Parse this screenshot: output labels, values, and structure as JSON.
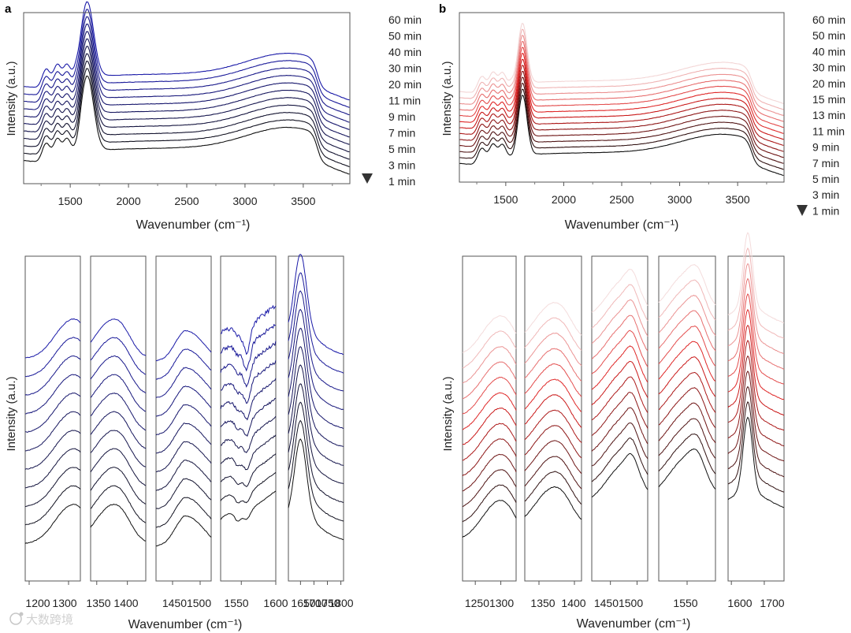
{
  "figure": {
    "panel_a_label": "a",
    "panel_b_label": "b",
    "watermark": "大数跨境"
  },
  "colors": {
    "blue_end": "#1a1aa8",
    "red_end": "#dd1a1a",
    "dark": "#111111",
    "frame": "#555555"
  },
  "chart_data": [
    {
      "id": "a_top",
      "type": "line",
      "title": "",
      "xlabel": "Wavenumber (cm⁻¹)",
      "ylabel": "Intensity (a.u.)",
      "xlim": [
        1100,
        3900
      ],
      "xticks": [
        1500,
        2000,
        2500,
        3000,
        3500
      ],
      "yticks_shown": false,
      "color_scheme": "blue",
      "legend_position": "right",
      "legend": [
        "60 min",
        "50 min",
        "40 min",
        "30 min",
        "20 min",
        "11 min",
        "9 min",
        "7 min",
        "5 min",
        "3 min",
        "1 min"
      ],
      "series_time_min": [
        1,
        3,
        5,
        7,
        9,
        11,
        20,
        30,
        40,
        50,
        60
      ],
      "peaks_cm1": [
        1300,
        1390,
        1470,
        1550,
        1640,
        3450,
        3630
      ]
    },
    {
      "id": "b_top",
      "type": "line",
      "title": "",
      "xlabel": "Wavenumber (cm⁻¹)",
      "ylabel": "Intensity (a.u.)",
      "xlim": [
        1100,
        3900
      ],
      "xticks": [
        1500,
        2000,
        2500,
        3000,
        3500
      ],
      "yticks_shown": false,
      "color_scheme": "red",
      "legend_position": "right",
      "legend": [
        "60 min",
        "50 min",
        "40 min",
        "30 min",
        "20 min",
        "15 min",
        "13 min",
        "11 min",
        "9 min",
        "7 min",
        "5 min",
        "3 min",
        "1 min"
      ],
      "series_time_min": [
        1,
        3,
        5,
        7,
        9,
        11,
        13,
        15,
        20,
        30,
        40,
        50,
        60
      ],
      "peaks_cm1": [
        1300,
        1390,
        1470,
        1550,
        1640,
        3420,
        3630
      ]
    },
    {
      "id": "a_bottom",
      "type": "line",
      "title": "",
      "xlabel": "Wavenumber (cm⁻¹)",
      "ylabel": "Intensity (a.u.)",
      "color_scheme": "blue",
      "series_count": 11,
      "subpanels": [
        {
          "xlim": [
            1190,
            1330
          ],
          "xticks": [
            1200,
            1300
          ],
          "peak_cm1": 1300
        },
        {
          "xlim": [
            1340,
            1430
          ],
          "xticks": [
            1350,
            1400
          ],
          "peak_cm1": 1370
        },
        {
          "xlim": [
            1420,
            1520
          ],
          "xticks": [
            1450,
            1500
          ],
          "peak_cm1": 1480
        },
        {
          "xlim": [
            1520,
            1600
          ],
          "xticks": [
            1550,
            1600
          ],
          "peak_cm1": 1555
        },
        {
          "xlim": [
            1605,
            1810
          ],
          "xticks": [
            1650,
            1700,
            1750,
            1800
          ],
          "peak_cm1": 1650
        }
      ],
      "tick_labels": [
        "1200",
        "1300",
        "1350",
        "1400",
        "14501500",
        "1550",
        "1600",
        "1650",
        "1700",
        "1750",
        "1800"
      ]
    },
    {
      "id": "b_bottom",
      "type": "line",
      "title": "",
      "xlabel": "Wavenumber (cm⁻¹)",
      "ylabel": "Intensity (a.u.)",
      "color_scheme": "red",
      "series_count": 13,
      "subpanels": [
        {
          "xlim": [
            1225,
            1330
          ],
          "xticks": [
            1250,
            1300
          ],
          "peak_cm1": 1290
        },
        {
          "xlim": [
            1330,
            1410
          ],
          "xticks": [
            1350,
            1400
          ],
          "peak_cm1": 1365
        },
        {
          "xlim": [
            1415,
            1520
          ],
          "xticks": [
            1450,
            1500
          ],
          "peak_cm1": 1470
        },
        {
          "xlim": [
            1510,
            1590
          ],
          "xticks": [
            1550
          ],
          "peak_cm1": 1545
        },
        {
          "xlim": [
            1590,
            1760
          ],
          "xticks": [
            1600,
            1700
          ],
          "peak_cm1": 1650
        }
      ],
      "tick_labels": [
        "12501300",
        "1350",
        "1400",
        "14501500",
        "1550",
        "1600",
        "1700"
      ]
    }
  ]
}
